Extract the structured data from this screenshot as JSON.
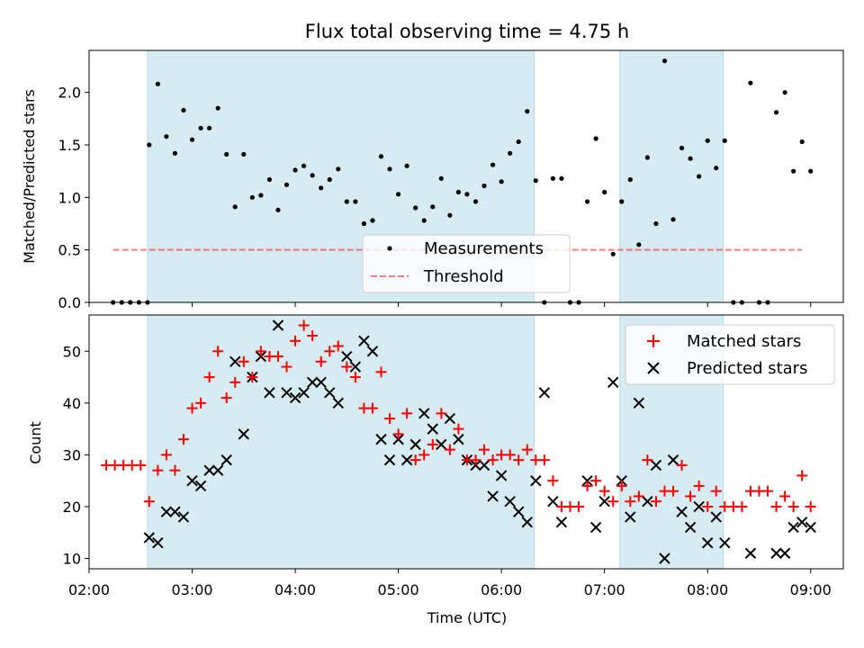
{
  "chart_data": [
    {
      "type": "scatter",
      "title": "Flux total observing time = 4.75 h",
      "ylabel": "Matched/Predicted stars",
      "xlabel": "",
      "xlim": [
        "02:00",
        "09:19"
      ],
      "ylim": [
        0,
        2.4
      ],
      "yticks": [
        "0.0",
        "0.5",
        "1.0",
        "1.5",
        "2.0"
      ],
      "shaded_intervals": [
        [
          "02:34",
          "06:19"
        ],
        [
          "07:09",
          "08:09"
        ]
      ],
      "shade_color": "#add8e6",
      "legend_position": "lower center",
      "series": [
        {
          "name": "Measurements",
          "marker": "dot",
          "color": "#000000",
          "points": [
            [
              "02:14",
              0
            ],
            [
              "02:19",
              0
            ],
            [
              "02:24",
              0
            ],
            [
              "02:29",
              0
            ],
            [
              "02:34",
              0
            ],
            [
              "02:35",
              1.5
            ],
            [
              "02:40",
              2.08
            ],
            [
              "02:45",
              1.58
            ],
            [
              "02:50",
              1.42
            ],
            [
              "02:55",
              1.83
            ],
            [
              "03:00",
              1.55
            ],
            [
              "03:05",
              1.66
            ],
            [
              "03:10",
              1.66
            ],
            [
              "03:15",
              1.85
            ],
            [
              "03:20",
              1.41
            ],
            [
              "03:25",
              0.91
            ],
            [
              "03:30",
              1.41
            ],
            [
              "03:35",
              1.0
            ],
            [
              "03:40",
              1.02
            ],
            [
              "03:45",
              1.17
            ],
            [
              "03:50",
              0.88
            ],
            [
              "03:55",
              1.12
            ],
            [
              "04:00",
              1.26
            ],
            [
              "04:05",
              1.3
            ],
            [
              "04:10",
              1.21
            ],
            [
              "04:15",
              1.09
            ],
            [
              "04:20",
              1.17
            ],
            [
              "04:25",
              1.27
            ],
            [
              "04:30",
              0.96
            ],
            [
              "04:35",
              0.96
            ],
            [
              "04:40",
              0.75
            ],
            [
              "04:45",
              0.78
            ],
            [
              "04:50",
              1.39
            ],
            [
              "04:55",
              1.27
            ],
            [
              "05:00",
              1.03
            ],
            [
              "05:05",
              1.3
            ],
            [
              "05:10",
              0.9
            ],
            [
              "05:15",
              0.78
            ],
            [
              "05:20",
              0.91
            ],
            [
              "05:25",
              1.18
            ],
            [
              "05:30",
              0.83
            ],
            [
              "05:35",
              1.05
            ],
            [
              "05:40",
              1.03
            ],
            [
              "05:45",
              0.96
            ],
            [
              "05:50",
              1.11
            ],
            [
              "05:55",
              1.31
            ],
            [
              "06:00",
              1.15
            ],
            [
              "06:05",
              1.42
            ],
            [
              "06:10",
              1.53
            ],
            [
              "06:15",
              1.82
            ],
            [
              "06:20",
              1.16
            ],
            [
              "06:25",
              0
            ],
            [
              "06:30",
              1.18
            ],
            [
              "06:35",
              1.18
            ],
            [
              "06:40",
              0
            ],
            [
              "06:45",
              0
            ],
            [
              "06:50",
              0.96
            ],
            [
              "06:55",
              1.56
            ],
            [
              "07:00",
              1.05
            ],
            [
              "07:05",
              0.46
            ],
            [
              "07:10",
              0.96
            ],
            [
              "07:15",
              1.17
            ],
            [
              "07:20",
              0.55
            ],
            [
              "07:25",
              1.38
            ],
            [
              "07:30",
              0.75
            ],
            [
              "07:35",
              2.3
            ],
            [
              "07:40",
              0.79
            ],
            [
              "07:45",
              1.47
            ],
            [
              "07:50",
              1.37
            ],
            [
              "07:55",
              1.2
            ],
            [
              "08:00",
              1.54
            ],
            [
              "08:05",
              1.28
            ],
            [
              "08:10",
              1.54
            ],
            [
              "08:15",
              0
            ],
            [
              "08:20",
              0
            ],
            [
              "08:25",
              2.09
            ],
            [
              "08:30",
              0
            ],
            [
              "08:35",
              0
            ],
            [
              "08:40",
              1.81
            ],
            [
              "08:45",
              2.0
            ],
            [
              "08:50",
              1.25
            ],
            [
              "08:55",
              1.53
            ],
            [
              "09:00",
              1.25
            ]
          ]
        },
        {
          "name": "Threshold",
          "line_style": "dashed",
          "color": "#ff0000",
          "alpha": 0.5,
          "x": [
            "02:14",
            "08:55"
          ],
          "y": [
            0.5,
            0.5
          ]
        }
      ]
    },
    {
      "type": "scatter",
      "title": "",
      "xlabel": "Time (UTC)",
      "ylabel": "Count",
      "xlim": [
        "02:00",
        "09:19"
      ],
      "ylim": [
        8,
        57
      ],
      "yticks": [
        "10",
        "20",
        "30",
        "40",
        "50"
      ],
      "xticks": [
        "02:00",
        "03:00",
        "04:00",
        "05:00",
        "06:00",
        "07:00",
        "08:00",
        "09:00"
      ],
      "shaded_intervals": [
        [
          "02:34",
          "06:19"
        ],
        [
          "07:09",
          "08:09"
        ]
      ],
      "shade_color": "#add8e6",
      "legend_position": "upper right",
      "series": [
        {
          "name": "Matched stars",
          "marker": "plus",
          "color": "#ff0000",
          "points": [
            [
              "02:10",
              28
            ],
            [
              "02:15",
              28
            ],
            [
              "02:20",
              28
            ],
            [
              "02:25",
              28
            ],
            [
              "02:30",
              28
            ],
            [
              "02:35",
              21
            ],
            [
              "02:40",
              27
            ],
            [
              "02:45",
              30
            ],
            [
              "02:50",
              27
            ],
            [
              "02:55",
              33
            ],
            [
              "03:00",
              39
            ],
            [
              "03:05",
              40
            ],
            [
              "03:10",
              45
            ],
            [
              "03:15",
              50
            ],
            [
              "03:20",
              41
            ],
            [
              "03:25",
              44
            ],
            [
              "03:30",
              48
            ],
            [
              "03:35",
              45
            ],
            [
              "03:40",
              50
            ],
            [
              "03:45",
              49
            ],
            [
              "03:50",
              49
            ],
            [
              "03:55",
              47
            ],
            [
              "04:00",
              52
            ],
            [
              "04:05",
              55
            ],
            [
              "04:10",
              53
            ],
            [
              "04:15",
              48
            ],
            [
              "04:20",
              50
            ],
            [
              "04:25",
              51
            ],
            [
              "04:30",
              47
            ],
            [
              "04:35",
              45
            ],
            [
              "04:40",
              39
            ],
            [
              "04:45",
              39
            ],
            [
              "04:50",
              46
            ],
            [
              "04:55",
              37
            ],
            [
              "05:00",
              34
            ],
            [
              "05:05",
              38
            ],
            [
              "05:10",
              29
            ],
            [
              "05:15",
              30
            ],
            [
              "05:20",
              32
            ],
            [
              "05:25",
              38
            ],
            [
              "05:30",
              31
            ],
            [
              "05:35",
              35
            ],
            [
              "05:40",
              29
            ],
            [
              "05:45",
              29
            ],
            [
              "05:50",
              31
            ],
            [
              "05:55",
              29
            ],
            [
              "06:00",
              30
            ],
            [
              "06:05",
              30
            ],
            [
              "06:10",
              29
            ],
            [
              "06:15",
              31
            ],
            [
              "06:20",
              29
            ],
            [
              "06:25",
              29
            ],
            [
              "06:30",
              25
            ],
            [
              "06:35",
              20
            ],
            [
              "06:40",
              20
            ],
            [
              "06:45",
              20
            ],
            [
              "06:50",
              24
            ],
            [
              "06:55",
              25
            ],
            [
              "07:00",
              23
            ],
            [
              "07:05",
              21
            ],
            [
              "07:10",
              24
            ],
            [
              "07:15",
              21
            ],
            [
              "07:20",
              22
            ],
            [
              "07:25",
              29
            ],
            [
              "07:30",
              21
            ],
            [
              "07:35",
              23
            ],
            [
              "07:40",
              23
            ],
            [
              "07:45",
              28
            ],
            [
              "07:50",
              22
            ],
            [
              "07:55",
              24
            ],
            [
              "08:00",
              20
            ],
            [
              "08:05",
              23
            ],
            [
              "08:10",
              20
            ],
            [
              "08:15",
              20
            ],
            [
              "08:20",
              20
            ],
            [
              "08:25",
              23
            ],
            [
              "08:30",
              23
            ],
            [
              "08:35",
              23
            ],
            [
              "08:40",
              20
            ],
            [
              "08:45",
              22
            ],
            [
              "08:50",
              20
            ],
            [
              "08:55",
              26
            ],
            [
              "09:00",
              20
            ]
          ]
        },
        {
          "name": "Predicted stars",
          "marker": "x",
          "color": "#000000",
          "points": [
            [
              "02:35",
              14
            ],
            [
              "02:40",
              13
            ],
            [
              "02:45",
              19
            ],
            [
              "02:50",
              19
            ],
            [
              "02:55",
              18
            ],
            [
              "03:00",
              25
            ],
            [
              "03:05",
              24
            ],
            [
              "03:10",
              27
            ],
            [
              "03:15",
              27
            ],
            [
              "03:20",
              29
            ],
            [
              "03:25",
              48
            ],
            [
              "03:30",
              34
            ],
            [
              "03:35",
              45
            ],
            [
              "03:40",
              49
            ],
            [
              "03:45",
              42
            ],
            [
              "03:50",
              55
            ],
            [
              "03:55",
              42
            ],
            [
              "04:00",
              41
            ],
            [
              "04:05",
              42
            ],
            [
              "04:10",
              44
            ],
            [
              "04:15",
              44
            ],
            [
              "04:20",
              42
            ],
            [
              "04:25",
              40
            ],
            [
              "04:30",
              49
            ],
            [
              "04:35",
              47
            ],
            [
              "04:40",
              52
            ],
            [
              "04:45",
              50
            ],
            [
              "04:50",
              33
            ],
            [
              "04:55",
              29
            ],
            [
              "05:00",
              33
            ],
            [
              "05:05",
              29
            ],
            [
              "05:10",
              32
            ],
            [
              "05:15",
              38
            ],
            [
              "05:20",
              35
            ],
            [
              "05:25",
              32
            ],
            [
              "05:30",
              37
            ],
            [
              "05:35",
              33
            ],
            [
              "05:40",
              29
            ],
            [
              "05:45",
              28
            ],
            [
              "05:50",
              28
            ],
            [
              "05:55",
              22
            ],
            [
              "06:00",
              26
            ],
            [
              "06:05",
              21
            ],
            [
              "06:10",
              19
            ],
            [
              "06:15",
              17
            ],
            [
              "06:20",
              25
            ],
            [
              "06:25",
              42
            ],
            [
              "06:30",
              21
            ],
            [
              "06:35",
              17
            ],
            [
              "06:50",
              25
            ],
            [
              "06:55",
              16
            ],
            [
              "07:00",
              21
            ],
            [
              "07:05",
              44
            ],
            [
              "07:10",
              25
            ],
            [
              "07:15",
              18
            ],
            [
              "07:20",
              40
            ],
            [
              "07:25",
              21
            ],
            [
              "07:30",
              28
            ],
            [
              "07:35",
              10
            ],
            [
              "07:40",
              29
            ],
            [
              "07:45",
              19
            ],
            [
              "07:50",
              16
            ],
            [
              "07:55",
              20
            ],
            [
              "08:00",
              13
            ],
            [
              "08:05",
              18
            ],
            [
              "08:10",
              13
            ],
            [
              "08:25",
              11
            ],
            [
              "08:40",
              11
            ],
            [
              "08:45",
              11
            ],
            [
              "08:50",
              16
            ],
            [
              "08:55",
              17
            ],
            [
              "09:00",
              16
            ]
          ]
        }
      ]
    }
  ]
}
